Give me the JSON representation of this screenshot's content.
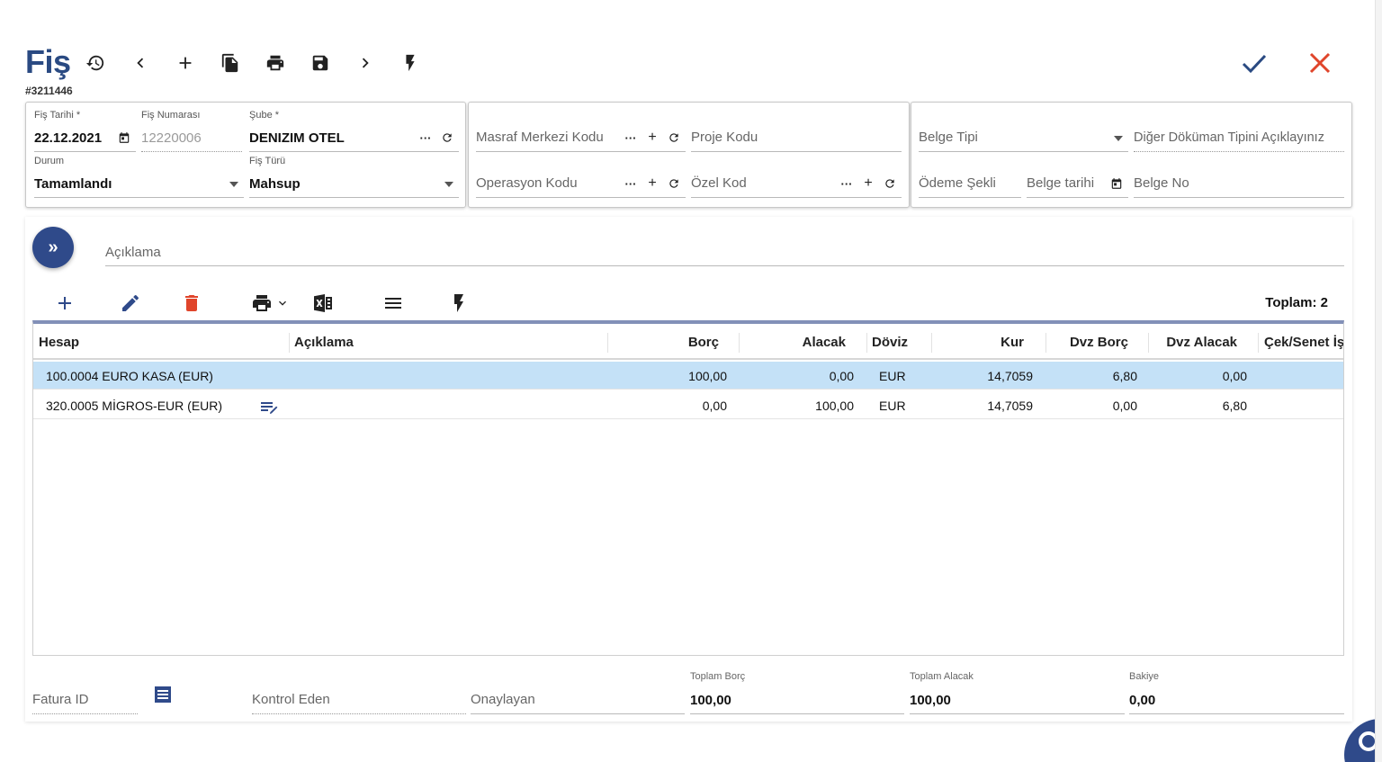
{
  "header": {
    "title": "Fiş",
    "record_id": "#3211446"
  },
  "toolbar": {
    "icons": [
      "history-icon",
      "prev-icon",
      "add-icon",
      "copy-icon",
      "print-icon",
      "save-icon",
      "next-icon",
      "flash-icon"
    ]
  },
  "colors": {
    "accent": "#2a4a82",
    "close": "#e0452b",
    "selected_row": "#c4e1f7"
  },
  "panel1": {
    "date": {
      "label": "Fiş Tarihi *",
      "value": "22.12.2021"
    },
    "number": {
      "label": "Fiş Numarası",
      "value": "12220006"
    },
    "branch": {
      "label": "Şube *",
      "value": "DENIZIM OTEL"
    },
    "status": {
      "label": "Durum",
      "value": "Tamamlandı"
    },
    "type": {
      "label": "Fiş Türü",
      "value": "Mahsup"
    }
  },
  "panel2": {
    "cost_center": "Masraf Merkezi Kodu",
    "project_code": "Proje Kodu",
    "operation_code": "Operasyon Kodu",
    "special_code": "Özel Kod"
  },
  "panel3": {
    "document_type": "Belge Tipi",
    "other_doc_type": "Diğer Döküman Tipini Açıklayınız",
    "payment_method": "Ödeme Şekli",
    "document_date": "Belge tarihi",
    "document_no": "Belge No"
  },
  "description_placeholder": "Açıklama",
  "grid": {
    "total_label": "Toplam: 2",
    "columns": [
      "Hesap",
      "Açıklama",
      "Borç",
      "Alacak",
      "Döviz",
      "Kur",
      "Dvz Borç",
      "Dvz Alacak",
      "Çek/Senet İş"
    ],
    "rows": [
      {
        "account": "100.0004 EURO KASA (EUR)",
        "description": "",
        "debit": "100,00",
        "credit": "0,00",
        "currency": "EUR",
        "rate": "14,7059",
        "fx_debit": "6,80",
        "fx_credit": "0,00",
        "cheque": ""
      },
      {
        "account": "320.0005 MİGROS-EUR (EUR)",
        "description": "",
        "debit": "0,00",
        "credit": "100,00",
        "currency": "EUR",
        "rate": "14,7059",
        "fx_debit": "0,00",
        "fx_credit": "6,80",
        "cheque": ""
      }
    ]
  },
  "footer": {
    "invoice_id": "Fatura ID",
    "controlled_by": "Kontrol Eden",
    "approved_by": "Onaylayan",
    "total_debit": {
      "label": "Toplam Borç",
      "value": "100,00"
    },
    "total_credit": {
      "label": "Toplam Alacak",
      "value": "100,00"
    },
    "balance": {
      "label": "Bakiye",
      "value": "0,00"
    }
  }
}
